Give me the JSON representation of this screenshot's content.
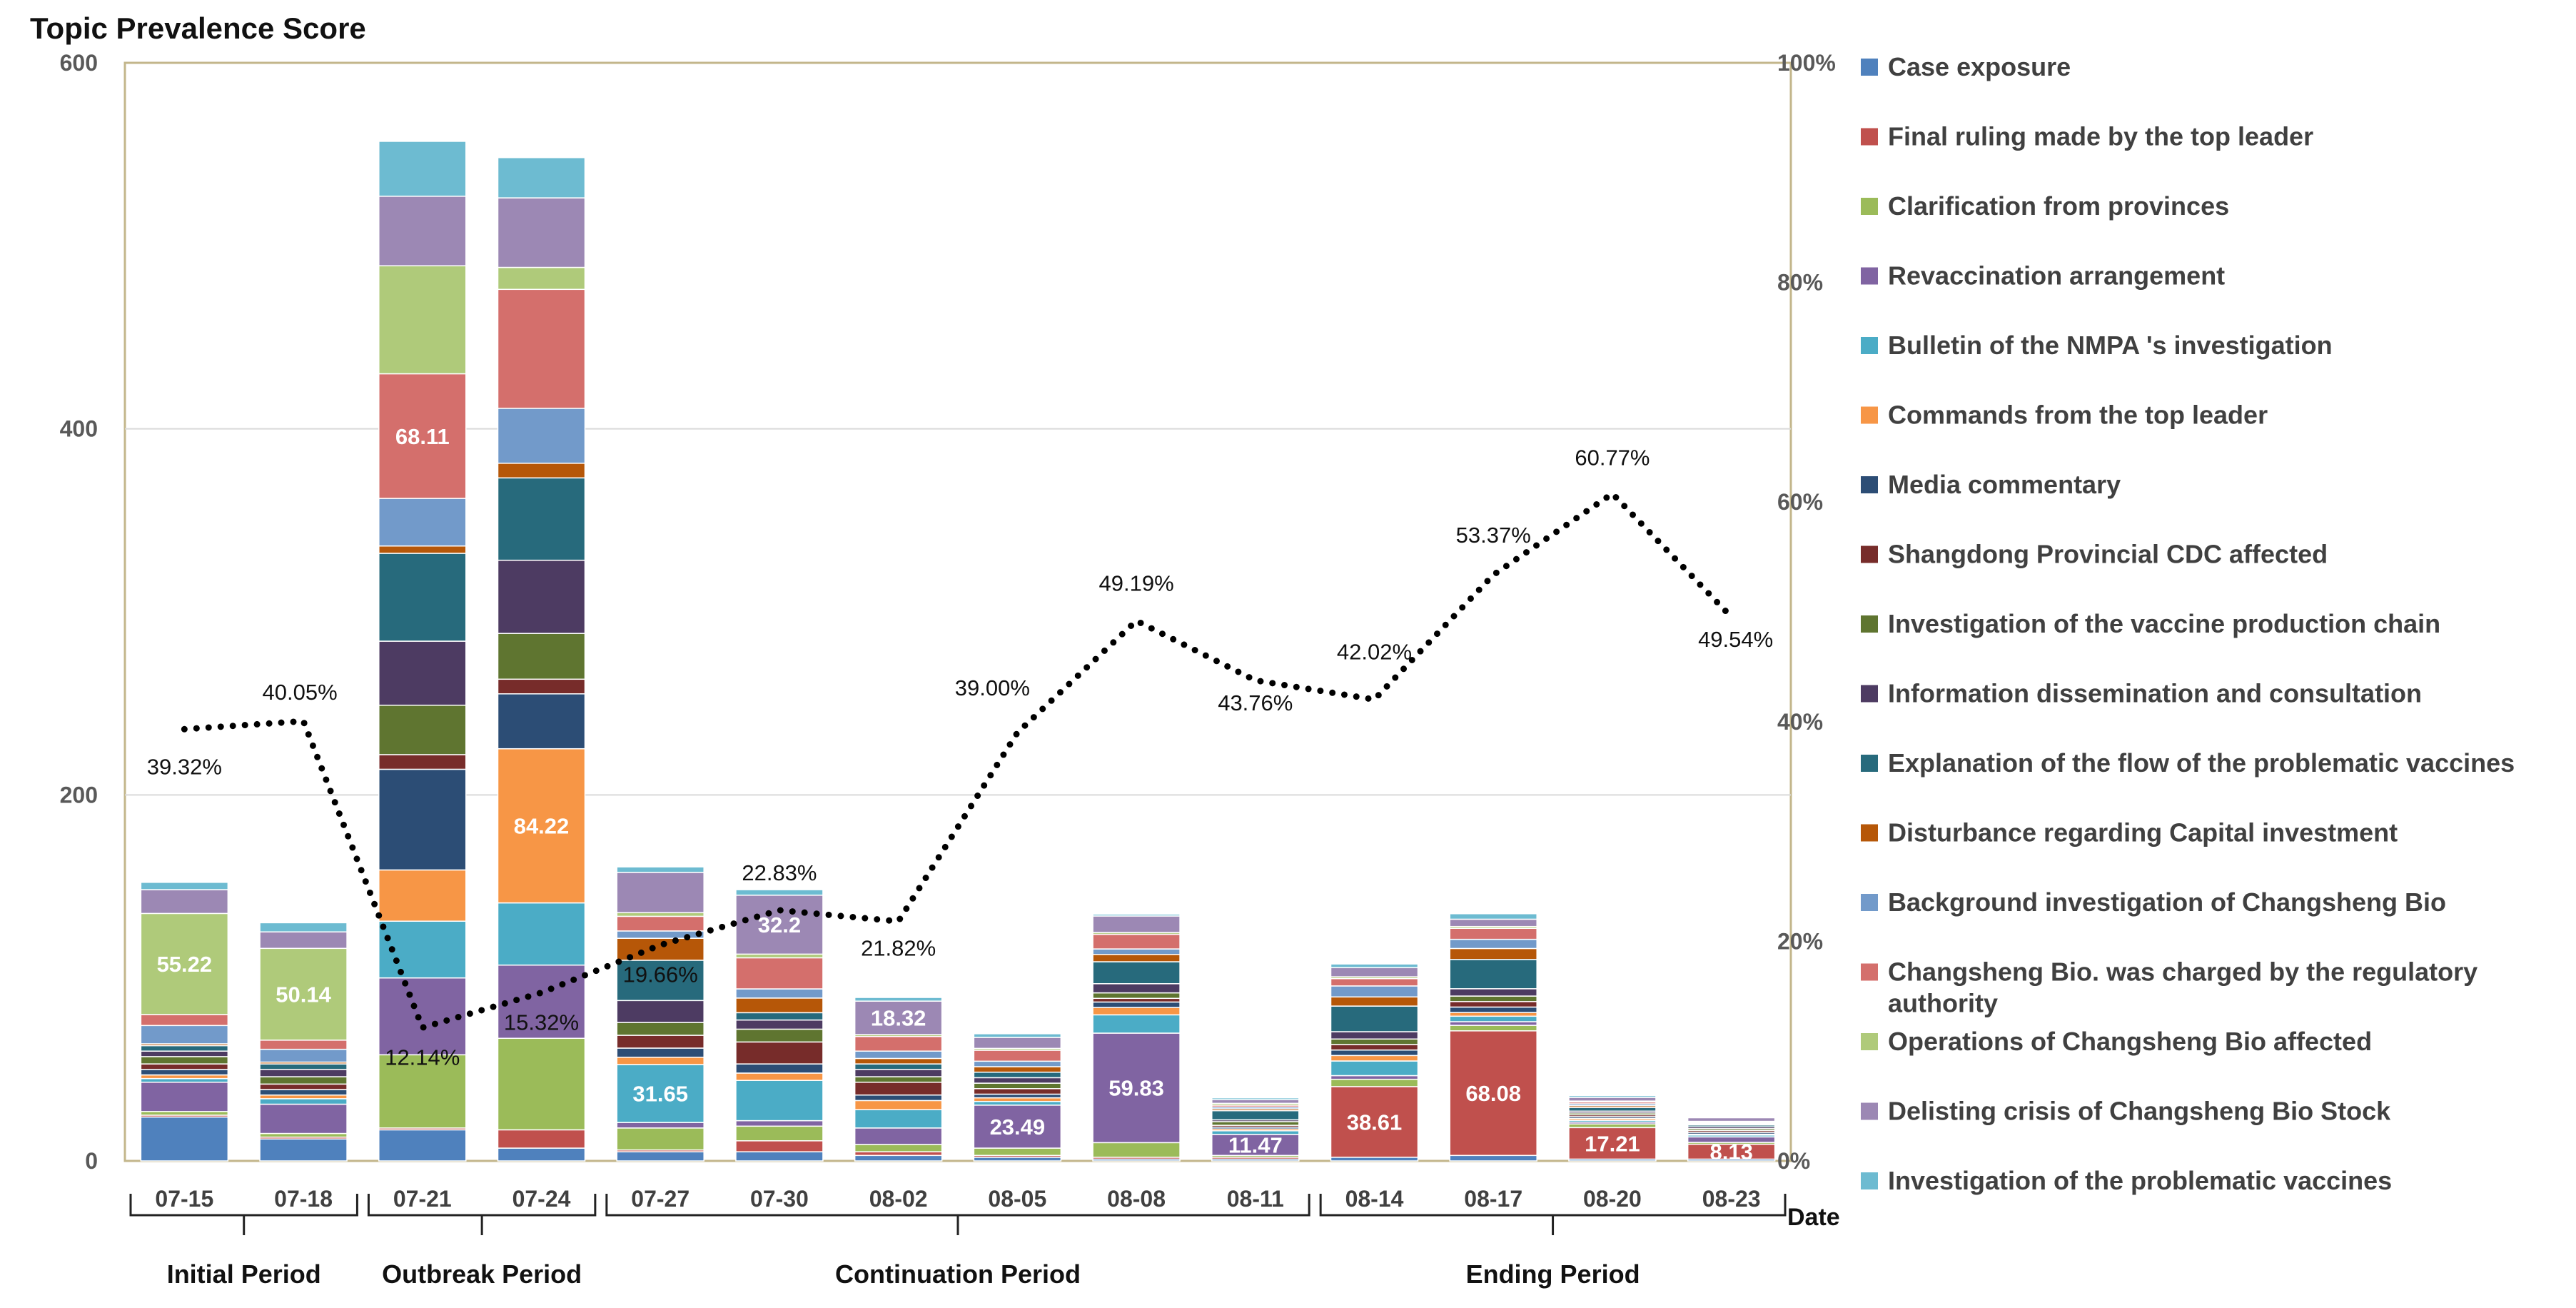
{
  "chart_data": {
    "type": "bar",
    "stacked": true,
    "title": "Topic Prevalence Score",
    "xlabel": "Date",
    "ylim": [
      0,
      600
    ],
    "y_ticks": [
      "0",
      "200",
      "400",
      "600"
    ],
    "y2lim": [
      0,
      100
    ],
    "y2_ticks": [
      "0%",
      "20%",
      "40%",
      "60%",
      "80%",
      "100%"
    ],
    "categories": [
      "07-15",
      "07-18",
      "07-21",
      "07-24",
      "07-27",
      "07-30",
      "08-02",
      "08-05",
      "08-08",
      "08-11",
      "08-14",
      "08-17",
      "08-20",
      "08-23"
    ],
    "periods": [
      {
        "name": "Initial Period",
        "start": 0,
        "end": 1
      },
      {
        "name": "Outbreak Period",
        "start": 2,
        "end": 3
      },
      {
        "name": "Continuation Period",
        "start": 4,
        "end": 9
      },
      {
        "name": "Ending Period",
        "start": 10,
        "end": 13
      }
    ],
    "series": [
      {
        "name": "Case exposure",
        "color": "#4f81bd",
        "values": [
          24,
          12,
          17,
          7,
          5,
          5,
          3,
          2,
          1,
          1,
          2,
          3,
          1,
          1
        ]
      },
      {
        "name": "Final ruling made by the top leader",
        "color": "#c0504d",
        "values": [
          1,
          1,
          1,
          10,
          1,
          6,
          2,
          1,
          1,
          1,
          38.61,
          68.08,
          17.21,
          8.13
        ]
      },
      {
        "name": "Clarification from provinces",
        "color": "#9bbb59",
        "values": [
          2,
          2,
          40,
          50,
          12,
          8,
          4,
          4,
          8,
          1,
          4,
          3,
          2,
          1
        ]
      },
      {
        "name": "Revaccination arrangement",
        "color": "#8064a2",
        "values": [
          16,
          16,
          42,
          40,
          3,
          3,
          9,
          23.49,
          59.83,
          11.47,
          2,
          2,
          1,
          3
        ]
      },
      {
        "name": "Bulletin of the NMPA 's investigation",
        "color": "#4bacc6",
        "values": [
          2,
          3,
          31,
          34,
          31.65,
          22,
          10,
          2,
          10,
          2,
          8,
          3,
          1,
          1
        ]
      },
      {
        "name": "Commands from the top leader",
        "color": "#f79646",
        "values": [
          2,
          2,
          28,
          84.22,
          4,
          4,
          5,
          2,
          4,
          1,
          3,
          2,
          1,
          0.5
        ]
      },
      {
        "name": "Media commentary",
        "color": "#2c4d75",
        "values": [
          3,
          3,
          55,
          30,
          5,
          5,
          3,
          2,
          3,
          1,
          3,
          3,
          1,
          1
        ]
      },
      {
        "name": "Shangdong Provincial CDC affected",
        "color": "#772c2a",
        "values": [
          3,
          3,
          8,
          8,
          7,
          12,
          7,
          3,
          2,
          1,
          3,
          3,
          1,
          1
        ]
      },
      {
        "name": "Investigation of the vaccine production chain",
        "color": "#5f7530",
        "values": [
          4,
          4,
          27,
          25,
          7,
          7,
          3,
          3,
          3,
          2,
          3,
          3,
          1,
          1
        ]
      },
      {
        "name": "Information dissemination and consultation",
        "color": "#4d3b62",
        "values": [
          3,
          4,
          35,
          40,
          12,
          5,
          4,
          3,
          5,
          1,
          4,
          4,
          1,
          1
        ]
      },
      {
        "name": "Explanation of the flow of the problematic vaccines",
        "color": "#276a7c",
        "values": [
          3,
          3,
          48,
          45,
          22,
          4,
          3,
          3,
          12,
          5,
          14,
          16,
          2,
          1
        ]
      },
      {
        "name": "Disturbance regarding Capital investment",
        "color": "#b65708",
        "values": [
          1,
          1,
          4,
          8,
          12,
          8,
          3,
          3,
          4,
          1,
          5,
          6,
          1,
          0.5
        ]
      },
      {
        "name": "Background investigation of Changsheng Bio",
        "color": "#729aca",
        "values": [
          10,
          7,
          26,
          30,
          4,
          5,
          4,
          3,
          3,
          1,
          6,
          5,
          1,
          0.5
        ]
      },
      {
        "name": "Changsheng Bio. was charged by the regulatory authority",
        "color": "#d46f6c",
        "values": [
          6,
          5,
          68.11,
          65,
          8,
          17,
          8,
          6,
          8,
          1,
          4,
          6,
          1,
          0.5
        ]
      },
      {
        "name": "Operations of Changsheng Bio affected",
        "color": "#afca7a",
        "values": [
          55.22,
          50.14,
          59,
          12,
          2,
          2,
          1,
          1,
          1,
          1,
          1,
          1,
          0.5,
          0.5
        ]
      },
      {
        "name": "Delisting crisis of Changsheng Bio Stock",
        "color": "#9c88b4",
        "values": [
          13,
          9,
          38,
          38,
          22,
          32.2,
          18.32,
          6,
          9,
          2,
          5,
          4,
          2,
          2
        ]
      },
      {
        "name": "Investigation of the problematic vaccines",
        "color": "#6dbbd1",
        "values": [
          4,
          5,
          30,
          22,
          3,
          3,
          2,
          2,
          1,
          1,
          2,
          3,
          1,
          0.5
        ]
      }
    ],
    "value_labels": [
      {
        "category": "07-15",
        "series": "Operations of Changsheng Bio affected",
        "text": "55.22"
      },
      {
        "category": "07-18",
        "series": "Operations of Changsheng Bio affected",
        "text": "50.14"
      },
      {
        "category": "07-21",
        "series": "Changsheng Bio. was charged by the regulatory authority",
        "text": "68.11"
      },
      {
        "category": "07-24",
        "series": "Commands from the top leader",
        "text": "84.22"
      },
      {
        "category": "07-27",
        "series": "Bulletin of the NMPA 's investigation",
        "text": "31.65"
      },
      {
        "category": "07-30",
        "series": "Delisting crisis of Changsheng Bio Stock",
        "text": "32.2"
      },
      {
        "category": "08-02",
        "series": "Delisting crisis of Changsheng Bio Stock",
        "text": "18.32"
      },
      {
        "category": "08-05",
        "series": "Revaccination arrangement",
        "text": "23.49"
      },
      {
        "category": "08-08",
        "series": "Revaccination arrangement",
        "text": "59.83"
      },
      {
        "category": "08-11",
        "series": "Revaccination arrangement",
        "text": "11.47"
      },
      {
        "category": "08-14",
        "series": "Final ruling made by the top leader",
        "text": "38.61"
      },
      {
        "category": "08-17",
        "series": "Final ruling made by the top leader",
        "text": "68.08"
      },
      {
        "category": "08-20",
        "series": "Final ruling made by the top leader",
        "text": "17.21"
      },
      {
        "category": "08-23",
        "series": "Final ruling made by the top leader",
        "text": "8.13"
      }
    ],
    "line": {
      "axis": "secondary",
      "style": "dotted",
      "color": "#000000",
      "values": [
        39.32,
        40.05,
        12.14,
        15.32,
        19.66,
        22.83,
        21.82,
        39.0,
        49.19,
        43.76,
        42.02,
        53.37,
        60.77,
        49.54
      ],
      "labels": [
        "39.32%",
        "40.05%",
        "12.14%",
        "15.32%",
        "19.66%",
        "22.83%",
        "21.82%",
        "39.00%",
        "49.19%",
        "43.76%",
        "42.02%",
        "53.37%",
        "60.77%",
        "49.54%"
      ]
    }
  }
}
